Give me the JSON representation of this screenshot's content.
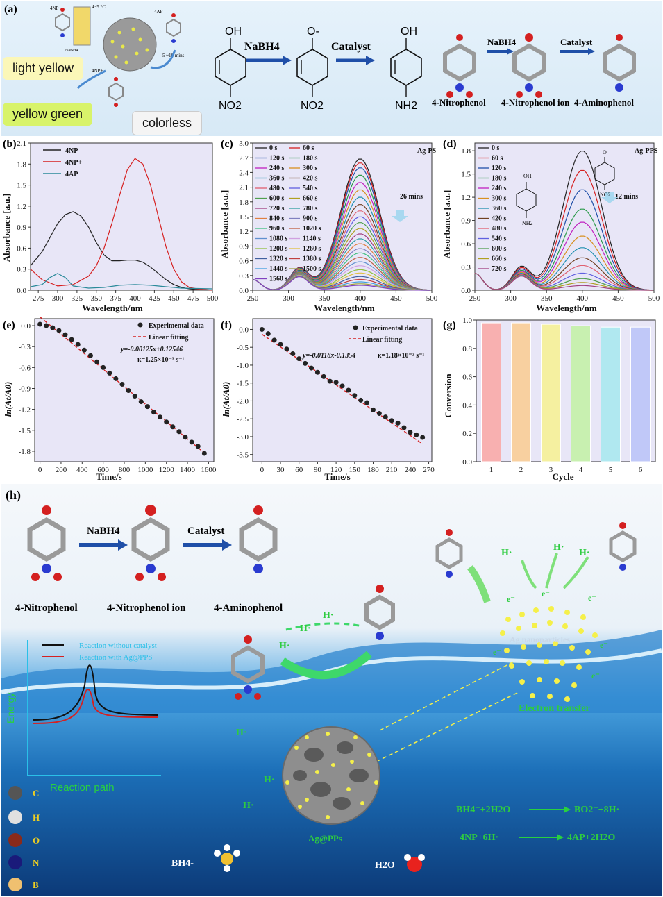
{
  "panel_a": {
    "label": "(a)",
    "small_labels": [
      "4NP",
      "4~5 °C",
      "NaBH4",
      "4AP",
      "5 ~10 mins",
      "4NP+"
    ],
    "tags": [
      "light yellow",
      "yellow green",
      "colorless"
    ],
    "reagent1": "NaBH4",
    "reagent2": "Catalyst",
    "reagent3": "NaBH4",
    "reagent4": "Catalyst",
    "mol_labels": [
      "4-Nitrophenol",
      "4-Nitrophenol ion",
      "4-Aminophenol"
    ],
    "groups": [
      "OH",
      "O-",
      "OH",
      "NO2",
      "NO2",
      "NH2"
    ]
  },
  "panel_b": {
    "label": "(b)",
    "xlabel": "Wavelength/nm",
    "ylabel": "Absorbance [a.u.]",
    "legend": [
      "4NP",
      "4NP+",
      "4AP"
    ],
    "xticks": [
      "275",
      "300",
      "325",
      "350",
      "375",
      "400",
      "425",
      "450",
      "475",
      "500"
    ],
    "yticks": [
      "0.0",
      "0.3",
      "0.6",
      "0.9",
      "1.2",
      "1.5",
      "1.8",
      "2.1"
    ]
  },
  "panel_c": {
    "label": "(c)",
    "title": "Ag-PS",
    "xlabel": "Wavelength/nm",
    "ylabel": "Absorbance [a.u.]",
    "annotation": "26 mins",
    "legend_col1": [
      "0 s",
      "120 s",
      "240 s",
      "360 s",
      "480 s",
      "600 s",
      "720 s",
      "840 s",
      "960 s",
      "1080 s",
      "1200 s",
      "1320 s",
      "1440 s",
      "1560 s"
    ],
    "legend_col2": [
      "60 s",
      "180 s",
      "300 s",
      "420 s",
      "540 s",
      "660 s",
      "780 s",
      "900 s",
      "1020 s",
      "1140 s",
      "1260 s",
      "1380 s",
      "1500 s"
    ],
    "xticks": [
      "250",
      "300",
      "350",
      "400",
      "450",
      "500"
    ],
    "yticks": [
      "0.0",
      "0.3",
      "0.6",
      "0.9",
      "1.2",
      "1.5",
      "1.8",
      "2.1",
      "2.4",
      "2.7",
      "3.0"
    ]
  },
  "panel_d": {
    "label": "(d)",
    "title": "Ag-PPS",
    "xlabel": "Wavelength/nm",
    "ylabel": "Absorbance [a.u.]",
    "annotation": "12 mins",
    "legend": [
      "0 s",
      "60 s",
      "120 s",
      "180 s",
      "240 s",
      "300 s",
      "360 s",
      "420 s",
      "480 s",
      "540 s",
      "600 s",
      "660 s",
      "720 s"
    ],
    "xticks": [
      "250",
      "300",
      "350",
      "400",
      "450",
      "500"
    ],
    "yticks": [
      "0.0",
      "0.3",
      "0.6",
      "0.9",
      "1.2",
      "1.5",
      "1.8"
    ],
    "groups": [
      "OH",
      "NH2",
      "O",
      "NO2"
    ]
  },
  "panel_e": {
    "label": "(e)",
    "xlabel": "Time/s",
    "ylabel": "ln(At/A0)",
    "legend": [
      "Experimental data",
      "Linear fitting"
    ],
    "equation": "y=-0.00125x+0.12546",
    "kappa": "κ=1.25×10⁻³ s⁻¹",
    "xticks": [
      "0",
      "200",
      "400",
      "600",
      "800",
      "1000",
      "1200",
      "1400",
      "1600"
    ],
    "yticks": [
      "0.0",
      "-0.3",
      "-0.6",
      "-0.9",
      "-1.2",
      "-1.5",
      "-1.8"
    ]
  },
  "panel_f": {
    "label": "(f)",
    "xlabel": "Time/s",
    "ylabel": "ln(At/A0)",
    "legend": [
      "Experimental data",
      "Linear fitting"
    ],
    "equation": "y=-0.0118x-0.1354",
    "kappa": "κ=1.18×10⁻² s⁻¹",
    "xticks": [
      "0",
      "30",
      "60",
      "90",
      "120",
      "150",
      "180",
      "210",
      "240",
      "270"
    ],
    "yticks": [
      "0.0",
      "-0.5",
      "-1.0",
      "-1.5",
      "-2.0",
      "-2.5",
      "-3.0",
      "-3.5"
    ]
  },
  "panel_g": {
    "label": "(g)",
    "xlabel": "Cycle",
    "ylabel": "Conversion",
    "xticks": [
      "1",
      "2",
      "3",
      "4",
      "5",
      "6"
    ],
    "yticks": [
      "0.0",
      "0.2",
      "0.4",
      "0.6",
      "0.8",
      "1.0"
    ]
  },
  "panel_h": {
    "label": "(h)",
    "reagent1": "NaBH4",
    "reagent2": "Catalyst",
    "mol_labels": [
      "4-Nitrophenol",
      "4-Nitrophenol ion",
      "4-Aminophenol"
    ],
    "energy_legend": [
      "Reaction without catalyst",
      "Reaction with Ag@PPS"
    ],
    "energy_axis": "Energy",
    "reaction_path": "Reaction path",
    "h_radicals": [
      "H·",
      "H·",
      "H·",
      "H·",
      "H·",
      "H·",
      "H·",
      "H·",
      "H·"
    ],
    "electron": "e⁻",
    "ag_label": "Ag nanoparticles",
    "electron_transfer": "Electron transfer",
    "sphere_label": "Ag@PPs",
    "bh4": "BH4-",
    "h2o": "H2O",
    "eq1_left": "BH4⁻+2H2O",
    "eq1_right": "BO2⁻+8H·",
    "eq2_left": "4NP+6H·",
    "eq2_right": "4AP+2H2O",
    "atom_legend": [
      "C",
      "H",
      "O",
      "N",
      "B"
    ]
  },
  "colors": {
    "plot_bg": "#e8e6f7",
    "ring": "#8a8a8a",
    "oxygen": "#d42020",
    "nitrogen": "#2a3bd0",
    "hydrogen": "#ffffff",
    "arrow": "#1f4fa8",
    "green_text": "#28d040",
    "water_top": "#4aa3e0",
    "water_deep": "#0c3a78"
  },
  "chart_data": [
    {
      "type": "line",
      "panel": "b",
      "xlabel": "Wavelength/nm",
      "ylabel": "Absorbance [a.u.]",
      "xlim": [
        265,
        500
      ],
      "ylim": [
        0,
        2.1
      ],
      "series": [
        {
          "name": "4NP",
          "color": "#222222",
          "x": [
            265,
            280,
            300,
            310,
            320,
            330,
            340,
            350,
            360,
            370,
            380,
            390,
            400,
            410,
            420,
            430,
            440,
            450,
            460,
            470,
            480,
            500
          ],
          "y": [
            0.35,
            0.55,
            0.95,
            1.08,
            1.12,
            1.06,
            0.9,
            0.68,
            0.5,
            0.42,
            0.42,
            0.43,
            0.43,
            0.4,
            0.33,
            0.24,
            0.15,
            0.08,
            0.04,
            0.02,
            0.01,
            0.0
          ]
        },
        {
          "name": "4NP+",
          "color": "#d62020",
          "x": [
            265,
            280,
            300,
            320,
            340,
            350,
            360,
            370,
            380,
            390,
            400,
            410,
            420,
            430,
            440,
            450,
            460,
            470,
            480,
            500
          ],
          "y": [
            0.3,
            0.15,
            0.06,
            0.08,
            0.2,
            0.35,
            0.6,
            0.95,
            1.35,
            1.72,
            1.88,
            1.8,
            1.5,
            1.05,
            0.62,
            0.3,
            0.12,
            0.04,
            0.02,
            0.0
          ]
        },
        {
          "name": "4AP",
          "color": "#2a8a9a",
          "x": [
            265,
            280,
            290,
            300,
            310,
            320,
            340,
            360,
            380,
            400,
            420,
            440,
            460,
            500
          ],
          "y": [
            0.05,
            0.08,
            0.18,
            0.24,
            0.18,
            0.06,
            0.03,
            0.04,
            0.07,
            0.08,
            0.07,
            0.05,
            0.03,
            0.02
          ]
        }
      ]
    },
    {
      "type": "line",
      "panel": "c",
      "xlabel": "Wavelength/nm",
      "ylabel": "Absorbance [a.u.]",
      "xlim": [
        250,
        500
      ],
      "ylim": [
        0,
        3.0
      ],
      "peak_x": 400,
      "peak_heights": [
        2.68,
        2.6,
        2.5,
        2.35,
        2.2,
        2.05,
        1.9,
        1.75,
        1.62,
        1.5,
        1.38,
        1.26,
        1.15,
        1.05,
        0.95,
        0.85,
        0.76,
        0.67,
        0.58,
        0.5,
        0.42,
        0.35,
        0.28,
        0.22,
        0.17,
        0.13,
        0.1
      ],
      "shoulder_y": 0.45
    },
    {
      "type": "line",
      "panel": "d",
      "xlabel": "Wavelength/nm",
      "ylabel": "Absorbance [a.u.]",
      "xlim": [
        250,
        500
      ],
      "ylim": [
        0,
        1.9
      ],
      "peak_x": 400,
      "peak_heights": [
        1.8,
        1.55,
        1.3,
        1.05,
        0.88,
        0.7,
        0.55,
        0.42,
        0.32,
        0.22,
        0.15,
        0.1,
        0.06
      ],
      "shoulder_y": 0.3
    },
    {
      "type": "scatter",
      "panel": "e",
      "xlabel": "Time/s",
      "ylabel": "ln(At/A0)",
      "xlim": [
        -50,
        1650
      ],
      "ylim": [
        -1.95,
        0.1
      ],
      "x": [
        0,
        60,
        120,
        180,
        240,
        300,
        360,
        420,
        480,
        540,
        600,
        660,
        720,
        780,
        840,
        900,
        960,
        1020,
        1080,
        1140,
        1200,
        1260,
        1320,
        1380,
        1440,
        1500,
        1560
      ],
      "y": [
        0.02,
        0.0,
        -0.03,
        -0.07,
        -0.13,
        -0.2,
        -0.27,
        -0.35,
        -0.43,
        -0.52,
        -0.6,
        -0.68,
        -0.76,
        -0.84,
        -0.93,
        -1.01,
        -1.09,
        -1.16,
        -1.24,
        -1.31,
        -1.38,
        -1.45,
        -1.52,
        -1.6,
        -1.67,
        -1.73,
        -1.83
      ],
      "fit": {
        "slope": -0.00125,
        "intercept": 0.12546
      }
    },
    {
      "type": "scatter",
      "panel": "f",
      "xlabel": "Time/s",
      "ylabel": "ln(At/A0)",
      "xlim": [
        -15,
        275
      ],
      "ylim": [
        -3.7,
        0.3
      ],
      "x": [
        0,
        10,
        20,
        30,
        40,
        50,
        60,
        70,
        80,
        90,
        100,
        110,
        120,
        130,
        140,
        150,
        160,
        170,
        180,
        190,
        200,
        210,
        220,
        230,
        240,
        250,
        260
      ],
      "y": [
        0.0,
        -0.12,
        -0.3,
        -0.42,
        -0.55,
        -0.68,
        -0.82,
        -0.95,
        -1.08,
        -1.2,
        -1.32,
        -1.45,
        -1.48,
        -1.58,
        -1.7,
        -1.85,
        -1.98,
        -2.05,
        -2.25,
        -2.35,
        -2.45,
        -2.55,
        -2.62,
        -2.75,
        -2.88,
        -2.95,
        -3.02
      ],
      "fit": {
        "slope": -0.0118,
        "intercept": -0.1354
      }
    },
    {
      "type": "bar",
      "panel": "g",
      "xlabel": "Cycle",
      "ylabel": "Conversion",
      "ylim": [
        0,
        1.0
      ],
      "categories": [
        "1",
        "2",
        "3",
        "4",
        "5",
        "6"
      ],
      "values": [
        0.98,
        0.98,
        0.97,
        0.96,
        0.95,
        0.95
      ],
      "colors": [
        "#f8b0b0",
        "#f8d0a0",
        "#f5f0a0",
        "#c8f0b0",
        "#b0e8f0",
        "#c0c8f8"
      ]
    }
  ]
}
